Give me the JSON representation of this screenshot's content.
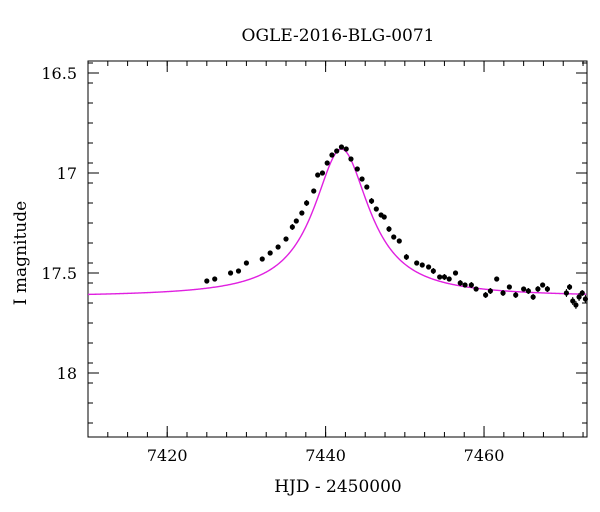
{
  "chart_data": {
    "type": "scatter",
    "title": "OGLE-2016-BLG-0071",
    "xlabel": "HJD - 2450000",
    "ylabel": "I magnitude",
    "xlim": [
      7410,
      7473
    ],
    "ylim": [
      18.32,
      16.44
    ],
    "y_inverted": true,
    "x_ticks": [
      7420,
      7440,
      7460
    ],
    "x_tick_labels": [
      "7420",
      "7440",
      "7460"
    ],
    "y_ticks": [
      16.5,
      17,
      17.5,
      18
    ],
    "y_tick_labels": [
      "16.5",
      "17",
      "17.5",
      "18"
    ],
    "grid": false,
    "legend": "none",
    "colors": {
      "points": "#000000",
      "model": "#e020e0",
      "axes": "#000000"
    },
    "model": {
      "t0": 7442,
      "baseline": 17.62,
      "peak": 16.88,
      "tE": 9.5
    },
    "series": [
      {
        "type": "scatter-errorbar",
        "x": [
          7425.0,
          7426.0,
          7428.0,
          7429.0,
          7430.0,
          7432.0,
          7433.0,
          7434.0,
          7435.0,
          7435.8,
          7436.3,
          7437.0,
          7437.6,
          7438.5,
          7439.0,
          7439.6,
          7440.2,
          7440.8,
          7441.4,
          7442.0,
          7442.6,
          7443.2,
          7444.0,
          7444.6,
          7445.2,
          7445.8,
          7446.4,
          7447.0,
          7447.4,
          7448.0,
          7448.6,
          7449.3,
          7450.2,
          7451.5,
          7452.2,
          7453.0,
          7453.6,
          7454.4,
          7455.0,
          7455.6,
          7456.4,
          7457.0,
          7457.6,
          7458.4,
          7459.0,
          7460.2,
          7460.8,
          7461.6,
          7462.4,
          7463.2,
          7464.0,
          7465.0,
          7465.6,
          7466.2,
          7466.8,
          7467.4,
          7468.0,
          7470.4,
          7470.8,
          7471.2,
          7471.6,
          7472.0,
          7472.4,
          7472.8
        ],
        "y": [
          17.54,
          17.53,
          17.5,
          17.49,
          17.45,
          17.43,
          17.4,
          17.37,
          17.33,
          17.27,
          17.24,
          17.2,
          17.15,
          17.09,
          17.01,
          17.0,
          16.95,
          16.91,
          16.89,
          16.87,
          16.88,
          16.93,
          16.98,
          17.03,
          17.07,
          17.14,
          17.18,
          17.21,
          17.22,
          17.28,
          17.32,
          17.34,
          17.42,
          17.45,
          17.46,
          17.47,
          17.49,
          17.52,
          17.52,
          17.53,
          17.5,
          17.55,
          17.56,
          17.56,
          17.58,
          17.61,
          17.59,
          17.53,
          17.6,
          17.57,
          17.61,
          17.58,
          17.59,
          17.62,
          17.58,
          17.56,
          17.58,
          17.6,
          17.57,
          17.64,
          17.66,
          17.62,
          17.6,
          17.63
        ],
        "yerr": [
          0.012,
          0.012,
          0.012,
          0.012,
          0.012,
          0.012,
          0.012,
          0.012,
          0.012,
          0.015,
          0.012,
          0.012,
          0.015,
          0.012,
          0.012,
          0.012,
          0.012,
          0.012,
          0.012,
          0.012,
          0.012,
          0.012,
          0.012,
          0.012,
          0.012,
          0.015,
          0.012,
          0.012,
          0.012,
          0.015,
          0.012,
          0.012,
          0.015,
          0.012,
          0.012,
          0.012,
          0.015,
          0.012,
          0.015,
          0.012,
          0.012,
          0.015,
          0.012,
          0.015,
          0.012,
          0.015,
          0.015,
          0.012,
          0.015,
          0.012,
          0.015,
          0.012,
          0.015,
          0.015,
          0.015,
          0.012,
          0.015,
          0.02,
          0.015,
          0.02,
          0.02,
          0.02,
          0.015,
          0.02
        ]
      }
    ]
  }
}
